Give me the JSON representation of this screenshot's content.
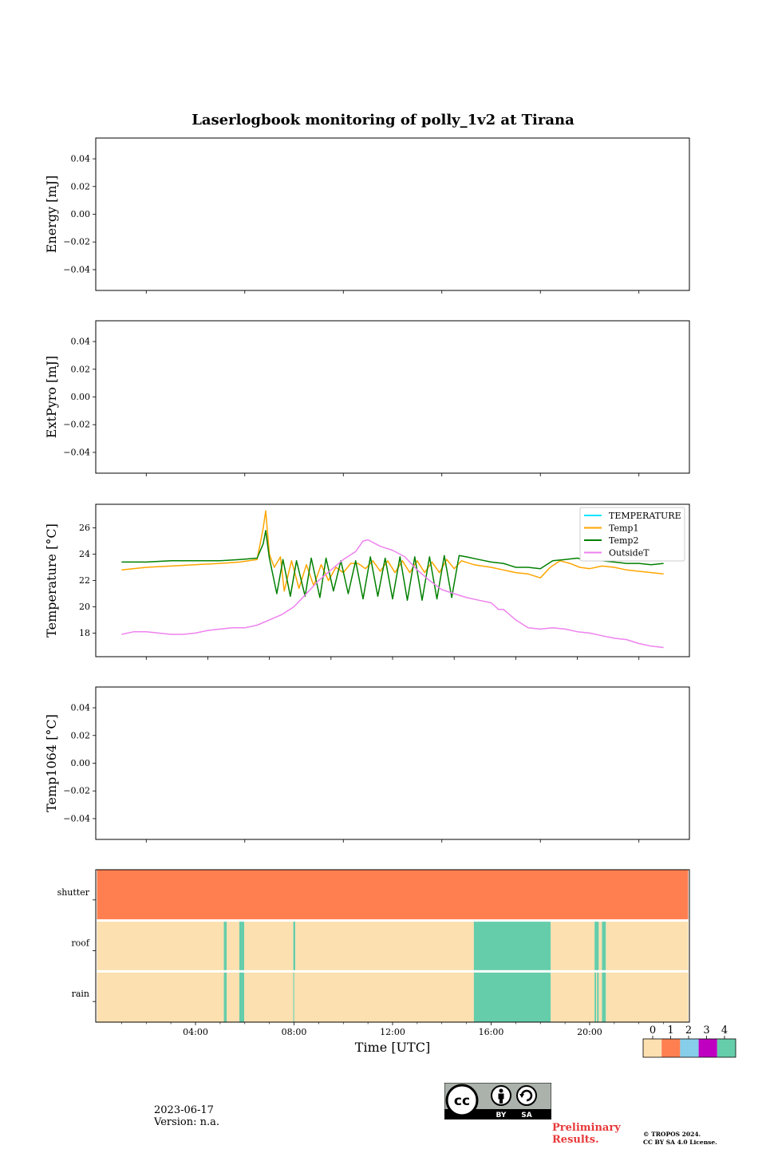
{
  "title": "Laserlogbook monitoring of polly_1v2 at Tirana",
  "footer": {
    "date": "2023-06-17",
    "version": "Version: n.a.",
    "preliminary_line1": "Preliminary",
    "preliminary_line2": "Results.",
    "copyright_line1": "© TROPOS 2024.",
    "copyright_line2": "CC BY SA 4.0 License.",
    "cc_labels": [
      "BY",
      "SA"
    ]
  },
  "chart_data": [
    {
      "type": "line",
      "ylabel": "Energy [mJ]",
      "ylim": [
        -0.055,
        0.055
      ],
      "yticks": [
        0.04,
        0.02,
        0.0,
        -0.02,
        -0.04
      ],
      "ytick_labels": [
        "0.04",
        "0.02",
        "0.00",
        "−0.02",
        "−0.04"
      ],
      "series": []
    },
    {
      "type": "line",
      "ylabel": "ExtPyro [mJ]",
      "ylim": [
        -0.055,
        0.055
      ],
      "yticks": [
        0.04,
        0.02,
        0.0,
        -0.02,
        -0.04
      ],
      "ytick_labels": [
        "0.04",
        "0.02",
        "0.00",
        "−0.02",
        "−0.04"
      ],
      "series": []
    },
    {
      "type": "line",
      "ylabel": "Temperature [°C]",
      "ylim": [
        16.2,
        27.8
      ],
      "yticks": [
        18,
        20,
        22,
        24,
        26
      ],
      "ytick_labels": [
        "18",
        "20",
        "22",
        "24",
        "26"
      ],
      "legend": "top-right",
      "series": [
        {
          "name": "TEMPERATURE",
          "color": "#00e5ff",
          "x": [],
          "y": []
        },
        {
          "name": "Temp1",
          "color": "#ffa500",
          "x": [
            1.0,
            2.0,
            3.0,
            4.0,
            5.0,
            5.8,
            6.5,
            6.75,
            6.85,
            7.0,
            7.2,
            7.45,
            7.6,
            7.9,
            8.2,
            8.5,
            8.8,
            9.1,
            9.4,
            9.7,
            10.0,
            10.3,
            10.6,
            10.9,
            11.2,
            11.5,
            11.8,
            12.1,
            12.4,
            12.7,
            13.0,
            13.3,
            13.6,
            13.9,
            14.2,
            14.5,
            14.8,
            15.3,
            16.0,
            16.5,
            17.0,
            17.5,
            18.0,
            18.4,
            18.8,
            19.2,
            19.6,
            20.0,
            20.5,
            21.0,
            21.5,
            22.0,
            22.5,
            23.0
          ],
          "y": [
            22.8,
            23.0,
            23.1,
            23.2,
            23.3,
            23.4,
            23.6,
            26.0,
            27.3,
            24.0,
            23.0,
            23.8,
            21.2,
            23.5,
            21.4,
            23.2,
            21.6,
            23.2,
            22.0,
            23.0,
            22.6,
            23.3,
            23.3,
            22.9,
            23.5,
            22.7,
            23.5,
            22.6,
            23.5,
            22.6,
            23.5,
            22.6,
            23.4,
            22.6,
            23.6,
            22.9,
            23.5,
            23.2,
            23.0,
            22.8,
            22.6,
            22.5,
            22.2,
            23.0,
            23.5,
            23.3,
            23.0,
            22.9,
            23.1,
            23.0,
            22.8,
            22.7,
            22.6,
            22.5
          ]
        },
        {
          "name": "Temp2",
          "color": "#008000",
          "x": [
            1.0,
            2.0,
            3.0,
            4.0,
            5.0,
            5.8,
            6.5,
            6.75,
            6.85,
            7.0,
            7.3,
            7.55,
            7.85,
            8.1,
            8.45,
            8.7,
            9.05,
            9.3,
            9.6,
            9.9,
            10.2,
            10.5,
            10.8,
            11.1,
            11.4,
            11.7,
            12.0,
            12.3,
            12.6,
            12.9,
            13.2,
            13.5,
            13.8,
            14.1,
            14.4,
            14.7,
            15.0,
            15.5,
            16.0,
            16.5,
            17.0,
            17.5,
            18.0,
            18.5,
            19.0,
            19.5,
            20.0,
            20.5,
            21.0,
            21.5,
            22.0,
            22.5,
            23.0
          ],
          "y": [
            23.4,
            23.4,
            23.5,
            23.5,
            23.5,
            23.6,
            23.7,
            24.8,
            25.8,
            23.7,
            21.0,
            23.6,
            20.8,
            23.5,
            20.8,
            23.7,
            20.7,
            23.7,
            21.2,
            23.5,
            21.0,
            23.5,
            20.6,
            23.8,
            20.8,
            23.7,
            20.6,
            23.8,
            20.5,
            23.8,
            20.5,
            23.8,
            20.6,
            23.9,
            20.7,
            23.9,
            23.8,
            23.6,
            23.4,
            23.3,
            23.0,
            23.0,
            22.9,
            23.5,
            23.6,
            23.7,
            23.5,
            23.5,
            23.4,
            23.3,
            23.3,
            23.2,
            23.3
          ]
        },
        {
          "name": "OutsideT",
          "color": "#ee82ee",
          "x": [
            1.0,
            1.5,
            2.0,
            2.5,
            3.0,
            3.5,
            4.0,
            4.5,
            5.0,
            5.5,
            6.0,
            6.5,
            7.0,
            7.5,
            8.0,
            8.5,
            9.0,
            9.5,
            10.0,
            10.5,
            10.8,
            11.0,
            11.5,
            12.0,
            12.5,
            13.0,
            13.5,
            14.0,
            14.5,
            15.0,
            15.5,
            16.0,
            16.3,
            16.5,
            17.0,
            17.5,
            18.0,
            18.5,
            19.0,
            19.5,
            20.0,
            20.5,
            21.0,
            21.5,
            22.0,
            22.5,
            23.0
          ],
          "y": [
            17.9,
            18.1,
            18.1,
            18.0,
            17.9,
            17.9,
            18.0,
            18.2,
            18.3,
            18.4,
            18.4,
            18.6,
            19.0,
            19.4,
            20.0,
            21.0,
            22.0,
            22.8,
            23.6,
            24.2,
            25.0,
            25.1,
            24.6,
            24.3,
            23.8,
            22.8,
            22.0,
            21.3,
            21.0,
            20.7,
            20.5,
            20.3,
            19.8,
            19.8,
            19.0,
            18.4,
            18.3,
            18.4,
            18.3,
            18.1,
            18.0,
            17.8,
            17.6,
            17.5,
            17.2,
            17.0,
            16.9
          ]
        }
      ]
    },
    {
      "type": "line",
      "ylabel": "Temp1064 [°C]",
      "ylim": [
        -0.055,
        0.055
      ],
      "yticks": [
        0.04,
        0.02,
        0.0,
        -0.02,
        -0.04
      ],
      "ytick_labels": [
        "0.04",
        "0.02",
        "0.00",
        "−0.02",
        "−0.04"
      ],
      "series": []
    },
    {
      "type": "heatmap",
      "xlabel": "Time [UTC]",
      "xlim": [
        0,
        24
      ],
      "xticks": [
        4,
        8,
        12,
        16,
        20
      ],
      "xtick_labels": [
        "04:00",
        "08:00",
        "12:00",
        "16:00",
        "20:00"
      ],
      "rows": [
        "shutter",
        "roof",
        "rain"
      ],
      "colorbar": {
        "labels": [
          "0",
          "1",
          "2",
          "3",
          "4"
        ],
        "colors": [
          "#fde0b0",
          "#ff7f50",
          "#87ceeb",
          "#c000c0",
          "#66cdaa"
        ]
      },
      "segments": {
        "shutter": [
          {
            "start": 0,
            "end": 24,
            "value": 1
          }
        ],
        "roof": [
          {
            "start": 0,
            "end": 5.15,
            "value": 0
          },
          {
            "start": 5.15,
            "end": 5.27,
            "value": 4
          },
          {
            "start": 5.27,
            "end": 5.78,
            "value": 0
          },
          {
            "start": 5.78,
            "end": 5.98,
            "value": 4
          },
          {
            "start": 5.98,
            "end": 7.97,
            "value": 0
          },
          {
            "start": 7.97,
            "end": 8.05,
            "value": 4
          },
          {
            "start": 8.05,
            "end": 15.3,
            "value": 0
          },
          {
            "start": 15.3,
            "end": 18.42,
            "value": 4
          },
          {
            "start": 18.42,
            "end": 20.2,
            "value": 0
          },
          {
            "start": 20.2,
            "end": 20.37,
            "value": 4
          },
          {
            "start": 20.37,
            "end": 20.5,
            "value": 0
          },
          {
            "start": 20.5,
            "end": 20.66,
            "value": 4
          },
          {
            "start": 20.66,
            "end": 24,
            "value": 0
          }
        ],
        "rain": [
          {
            "start": 0,
            "end": 5.15,
            "value": 0
          },
          {
            "start": 5.15,
            "end": 5.27,
            "value": 4
          },
          {
            "start": 5.27,
            "end": 5.78,
            "value": 0
          },
          {
            "start": 5.78,
            "end": 5.98,
            "value": 4
          },
          {
            "start": 5.98,
            "end": 7.97,
            "value": 0
          },
          {
            "start": 7.97,
            "end": 8.01,
            "value": 4
          },
          {
            "start": 8.01,
            "end": 15.3,
            "value": 0
          },
          {
            "start": 15.3,
            "end": 18.42,
            "value": 4
          },
          {
            "start": 18.42,
            "end": 20.2,
            "value": 0
          },
          {
            "start": 20.2,
            "end": 20.26,
            "value": 4
          },
          {
            "start": 20.26,
            "end": 20.3,
            "value": 0
          },
          {
            "start": 20.3,
            "end": 20.37,
            "value": 4
          },
          {
            "start": 20.37,
            "end": 20.5,
            "value": 0
          },
          {
            "start": 20.5,
            "end": 20.66,
            "value": 4
          },
          {
            "start": 20.66,
            "end": 24,
            "value": 0
          }
        ]
      }
    }
  ]
}
